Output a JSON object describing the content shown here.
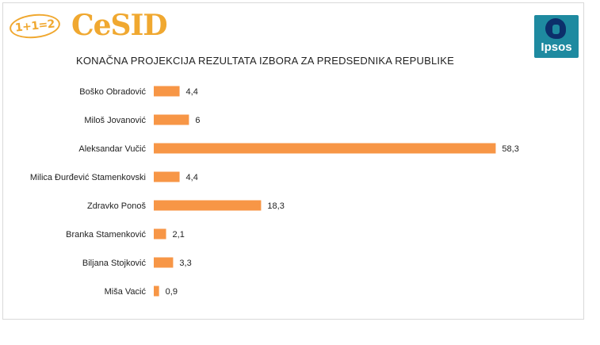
{
  "branding": {
    "badge_text": "1+1=2",
    "name": "CeSID",
    "partner": "Ipsos",
    "brand_color": "#f0a830",
    "partner_color": "#1e8aa0"
  },
  "chart_data": {
    "type": "bar",
    "orientation": "horizontal",
    "title": "KONAČNA PROJEKCIJA REZULTATA IZBORA ZA PREDSEDNIKA REPUBLIKE",
    "categories": [
      "Boško Obradović",
      "Miloš Jovanović",
      "Aleksandar Vučić",
      "Milica Đurđević Stamenkovski",
      "Zdravko Ponoš",
      "Branka Stamenković",
      "Biljana Stojković",
      "Miša Vacić"
    ],
    "values": [
      4.4,
      6,
      58.3,
      4.4,
      18.3,
      2.1,
      3.3,
      0.9
    ],
    "value_labels": [
      "4,4",
      "6",
      "58,3",
      "4,4",
      "18,3",
      "2,1",
      "3,3",
      "0,9"
    ],
    "bar_color": "#f79646",
    "xlim": [
      0,
      60
    ],
    "grid": false,
    "legend": "none"
  }
}
